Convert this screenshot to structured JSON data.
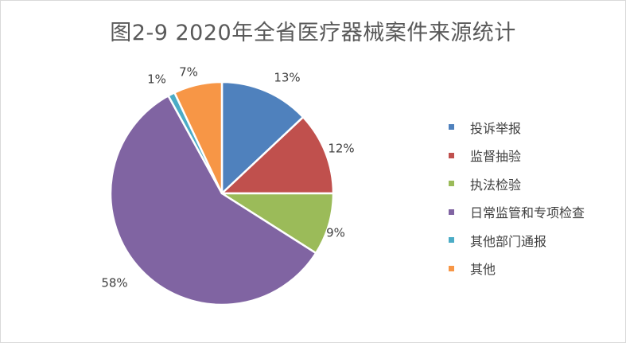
{
  "chart_data": {
    "type": "pie",
    "title": "图2-9  2020年全省医疗器械案件来源统计",
    "categories": [
      "投诉举报",
      "监督抽验",
      "执法检验",
      "日常监管和专项检查",
      "其他部门通报",
      "其他"
    ],
    "values": [
      13,
      12,
      9,
      58,
      1,
      7
    ],
    "value_labels": [
      "13%",
      "12%",
      "9%",
      "58%",
      "1%",
      "7%"
    ],
    "unit": "%",
    "colors": [
      "#4f81bd",
      "#c0504d",
      "#9bbb59",
      "#8064a2",
      "#4bacc6",
      "#f79646"
    ],
    "legend_position": "right",
    "start_angle": "12 o'clock",
    "direction": "clockwise"
  }
}
